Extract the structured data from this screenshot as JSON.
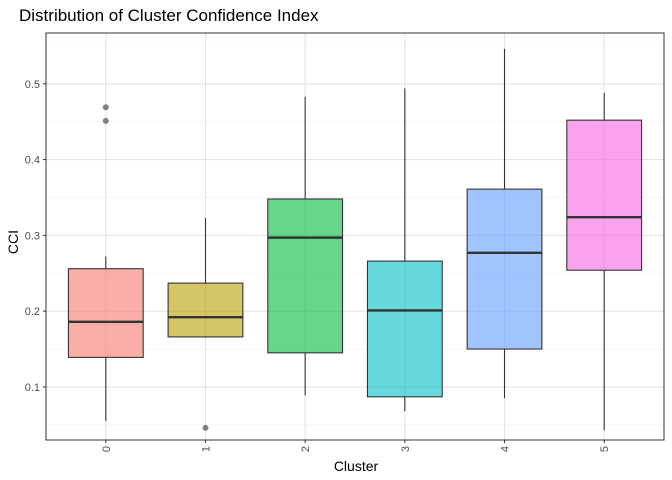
{
  "chart_data": {
    "type": "boxplot",
    "title": "Distribution of Cluster Confidence Index",
    "xlabel": "Cluster",
    "ylabel": "CCI",
    "categories": [
      "0",
      "1",
      "2",
      "3",
      "4",
      "5"
    ],
    "ylim": [
      0.03,
      0.567
    ],
    "yticks": [
      0.1,
      0.2,
      0.3,
      0.4,
      0.5
    ],
    "ytick_labels": [
      "0.1",
      "0.2",
      "0.3",
      "0.4",
      "0.5"
    ],
    "grid": true,
    "boxes": [
      {
        "name": "0",
        "color": "#F8766D",
        "whisker_low": 0.055,
        "q1": 0.139,
        "median": 0.186,
        "q3": 0.256,
        "whisker_high": 0.272,
        "outliers": [
          0.451,
          0.469
        ]
      },
      {
        "name": "1",
        "color": "#B79F00",
        "whisker_low": 0.165,
        "q1": 0.166,
        "median": 0.192,
        "q3": 0.237,
        "whisker_high": 0.323,
        "outliers": [
          0.046
        ]
      },
      {
        "name": "2",
        "color": "#00BA38",
        "whisker_low": 0.089,
        "q1": 0.145,
        "median": 0.297,
        "q3": 0.348,
        "whisker_high": 0.483,
        "outliers": []
      },
      {
        "name": "3",
        "color": "#00BFC4",
        "whisker_low": 0.068,
        "q1": 0.087,
        "median": 0.201,
        "q3": 0.266,
        "whisker_high": 0.494,
        "outliers": []
      },
      {
        "name": "4",
        "color": "#619CFF",
        "whisker_low": 0.085,
        "q1": 0.15,
        "median": 0.277,
        "q3": 0.361,
        "whisker_high": 0.546,
        "outliers": []
      },
      {
        "name": "5",
        "color": "#F564E3",
        "whisker_low": 0.043,
        "q1": 0.254,
        "median": 0.324,
        "q3": 0.452,
        "whisker_high": 0.488,
        "outliers": []
      }
    ]
  }
}
